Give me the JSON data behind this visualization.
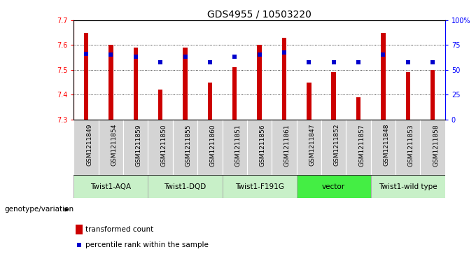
{
  "title": "GDS4955 / 10503220",
  "samples": [
    "GSM1211849",
    "GSM1211854",
    "GSM1211859",
    "GSM1211850",
    "GSM1211855",
    "GSM1211860",
    "GSM1211851",
    "GSM1211856",
    "GSM1211861",
    "GSM1211847",
    "GSM1211852",
    "GSM1211857",
    "GSM1211848",
    "GSM1211853",
    "GSM1211858"
  ],
  "bar_values": [
    7.65,
    7.6,
    7.59,
    7.42,
    7.59,
    7.45,
    7.51,
    7.6,
    7.63,
    7.45,
    7.49,
    7.39,
    7.65,
    7.49,
    7.5
  ],
  "dot_values": [
    7.565,
    7.563,
    7.552,
    7.53,
    7.552,
    7.53,
    7.552,
    7.563,
    7.57,
    7.53,
    7.53,
    7.53,
    7.563,
    7.53,
    7.53
  ],
  "ylim": [
    7.3,
    7.7
  ],
  "y_ticks_left": [
    7.3,
    7.4,
    7.5,
    7.6,
    7.7
  ],
  "y_ticks_right": [
    0,
    25,
    50,
    75,
    100
  ],
  "y_right_labels": [
    "0",
    "25",
    "50",
    "75",
    "100%"
  ],
  "bar_color": "#cc0000",
  "dot_color": "#0000cc",
  "bar_bottom": 7.3,
  "groups": [
    {
      "label": "Twist1-AQA",
      "start": 0,
      "end": 3,
      "color": "#c8f0c8"
    },
    {
      "label": "Twist1-DQD",
      "start": 3,
      "end": 6,
      "color": "#c8f0c8"
    },
    {
      "label": "Twist1-F191G",
      "start": 6,
      "end": 9,
      "color": "#c8f0c8"
    },
    {
      "label": "vector",
      "start": 9,
      "end": 12,
      "color": "#44ee44"
    },
    {
      "label": "Twist1-wild type",
      "start": 12,
      "end": 15,
      "color": "#c8f0c8"
    }
  ],
  "sample_bg_color": "#d4d4d4",
  "genotype_label": "genotype/variation",
  "legend_bar_label": "transformed count",
  "legend_dot_label": "percentile rank within the sample",
  "title_fontsize": 10,
  "tick_fontsize": 7,
  "label_fontsize": 8
}
